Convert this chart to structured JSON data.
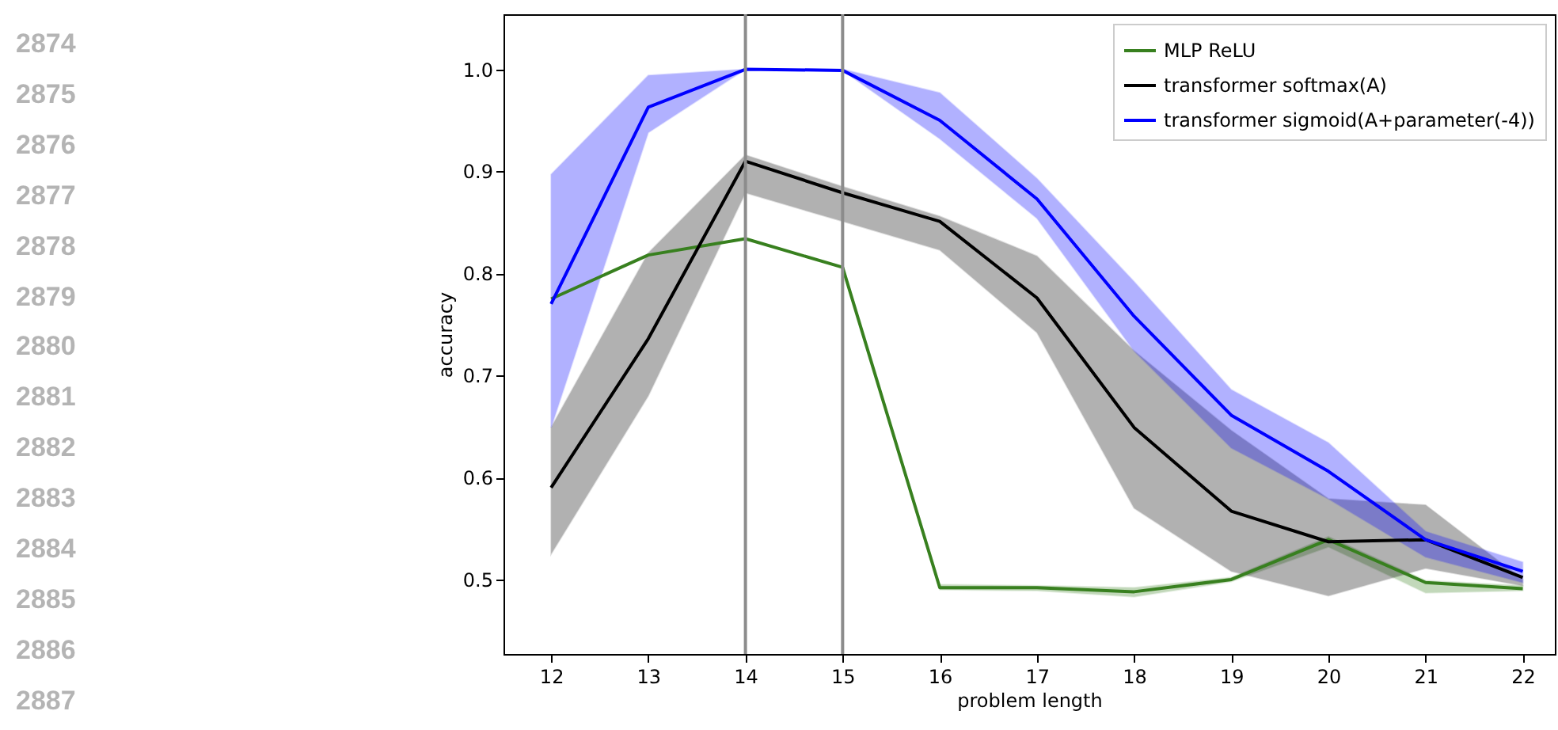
{
  "chart_data": {
    "type": "line",
    "xlabel": "problem length",
    "ylabel": "accuracy",
    "x": [
      12,
      13,
      14,
      15,
      16,
      17,
      18,
      19,
      20,
      21,
      22
    ],
    "xlim": [
      11.51,
      22.33
    ],
    "xticks": [
      12,
      13,
      14,
      15,
      16,
      17,
      18,
      19,
      20,
      21,
      22
    ],
    "ylim": [
      0.427,
      1.054
    ],
    "yticks": [
      0.5,
      0.6,
      0.7,
      0.8,
      0.9,
      {
        "value": 1.0,
        "label": "1.0"
      }
    ],
    "grid": false,
    "legend": "top right",
    "marker": "none",
    "line_style": "solid",
    "series": [
      {
        "name": "MLP ReLU",
        "color": "#38801f",
        "values": [
          0.775,
          0.818,
          0.834,
          0.806,
          0.492,
          0.492,
          0.488,
          0.5,
          0.539,
          0.497,
          0.491
        ],
        "lower": [
          0.775,
          0.818,
          0.834,
          0.806,
          0.49,
          0.489,
          0.483,
          0.498,
          0.532,
          0.487,
          0.489
        ],
        "upper": [
          0.775,
          0.818,
          0.834,
          0.806,
          0.495,
          0.494,
          0.492,
          0.502,
          0.542,
          0.499,
          0.494
        ]
      },
      {
        "name": "transformer softmax(A)",
        "color": "#000000",
        "values": [
          0.59,
          0.736,
          0.91,
          0.879,
          0.851,
          0.776,
          0.649,
          0.567,
          0.537,
          0.539,
          0.502
        ],
        "lower": [
          0.525,
          0.68,
          0.879,
          0.851,
          0.823,
          0.742,
          0.57,
          0.508,
          0.484,
          0.511,
          0.494
        ],
        "upper": [
          0.649,
          0.82,
          0.916,
          0.885,
          0.856,
          0.817,
          0.724,
          0.646,
          0.579,
          0.573,
          0.5
        ]
      },
      {
        "name": "transformer sigmoid(A+parameter(-4))",
        "color": "#0000ff",
        "values": [
          0.77,
          0.963,
          1.0,
          0.999,
          0.95,
          0.873,
          0.758,
          0.661,
          0.606,
          0.539,
          0.508
        ],
        "lower": [
          0.649,
          0.938,
          1.0,
          0.999,
          0.932,
          0.854,
          0.724,
          0.629,
          0.579,
          0.522,
          0.497
        ],
        "upper": [
          0.897,
          0.994,
          1.0,
          1.0,
          0.977,
          0.893,
          0.792,
          0.686,
          0.634,
          0.547,
          0.517
        ]
      }
    ],
    "ref_lines": [
      {
        "axis": "x",
        "value": 14,
        "color": "#8c8c8c"
      },
      {
        "axis": "x",
        "value": 15,
        "color": "#8c8c8c"
      }
    ],
    "annotations": [
      "2874",
      "2875",
      "2876",
      "2877",
      "2878",
      "2879",
      "2880",
      "2881",
      "2882",
      "2883",
      "2884",
      "2885",
      "2886",
      "2887"
    ]
  }
}
